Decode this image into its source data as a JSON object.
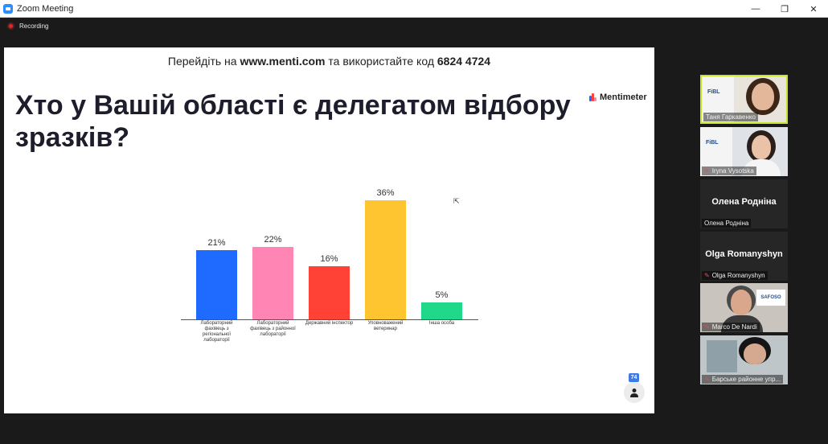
{
  "window": {
    "title": "Zoom Meeting",
    "minimize": "—",
    "maximize": "❐",
    "close": "✕"
  },
  "recording": {
    "label": "Recording"
  },
  "slide": {
    "join_prefix": "Перейдіть на",
    "join_url": "www.menti.com",
    "join_middle": "та використайте код",
    "join_code": "6824 4724",
    "question": "Хто у Вашій області є делегатом відбору зразків?",
    "brand": "Mentimeter",
    "participant_count": "74"
  },
  "chart_data": {
    "type": "bar",
    "categories": [
      "Лабораторний фахівець з регіональної лабораторії",
      "Лабораторний фахівець з районної лабораторії",
      "Державний інспектор",
      "Уповноважений ветеринар",
      "Інша особа"
    ],
    "values": [
      21,
      22,
      16,
      36,
      5
    ],
    "value_labels": [
      "21%",
      "22%",
      "16%",
      "36%",
      "5%"
    ],
    "colors": [
      "#1f6bff",
      "#ff85b4",
      "#ff4136",
      "#ffc531",
      "#1fd88a"
    ],
    "ylim": [
      0,
      36
    ]
  },
  "participants": [
    {
      "name": "Таня Гаркавенко",
      "muted": false,
      "active": true
    },
    {
      "name": "Iryna Vysotska",
      "muted": true,
      "active": false
    },
    {
      "name": "Олена Родніна",
      "display": "Олена Родніна",
      "muted": false,
      "active": false
    },
    {
      "name": "Olga Romanyshyn",
      "display": "Olga Romanyshyn",
      "muted": true,
      "active": false
    },
    {
      "name": "Marco De Nardi",
      "muted": true,
      "active": false
    },
    {
      "name": "Барське районне упр...",
      "muted": true,
      "active": false
    }
  ],
  "thumb_logos": {
    "fibl": "FiBL",
    "safoso": "SAFOSO"
  },
  "icons": {
    "recording": "record-dot-icon",
    "mic_muted": "mic-muted-icon",
    "person": "person-icon",
    "brand": "mentimeter-logo-icon",
    "pointer": "mouse-pointer-icon"
  }
}
